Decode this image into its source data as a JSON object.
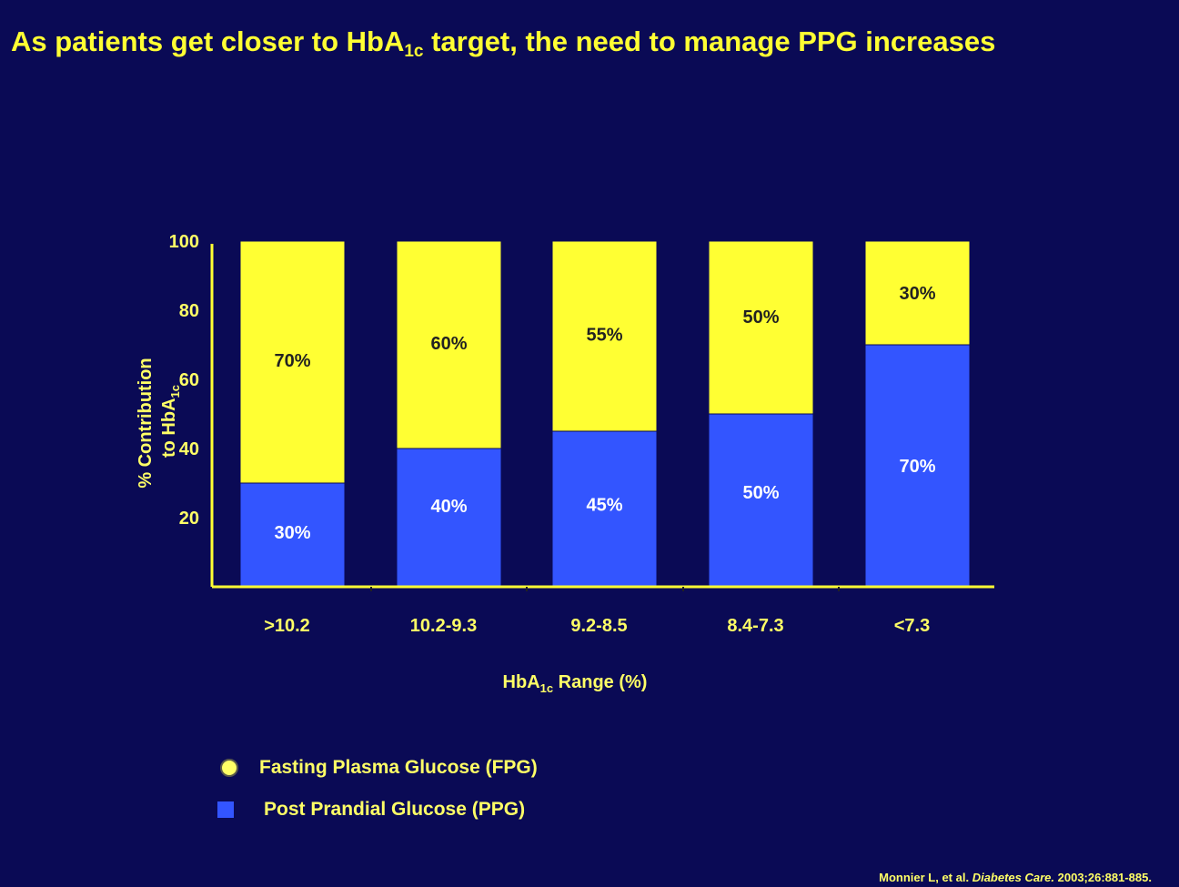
{
  "title": {
    "before_sub": "As patients get closer to HbA",
    "sub": "1c",
    "after_sub": " target, the need to manage PPG increases"
  },
  "colors": {
    "background": "#0a0a55",
    "fpg": "#ffff33",
    "ppg": "#3355ff",
    "axis": "#ffff33",
    "text": "#ffff66"
  },
  "chart_data": {
    "type": "bar",
    "stacked": true,
    "title": "As patients get closer to HbA1c target, the need to manage PPG increases",
    "categories": [
      ">10.2",
      "10.2-9.3",
      "9.2-8.5",
      "8.4-7.3",
      "<7.3"
    ],
    "series": [
      {
        "name": "Post Prandial Glucose (PPG)",
        "values": [
          30,
          40,
          45,
          50,
          70
        ]
      },
      {
        "name": "Fasting Plasma Glucose (FPG)",
        "values": [
          70,
          60,
          55,
          50,
          30
        ]
      }
    ],
    "ppg_labels": [
      "30%",
      "40%",
      "45%",
      "50%",
      "70%"
    ],
    "fpg_labels": [
      "70%",
      "60%",
      "55%",
      "50%",
      "30%"
    ],
    "yticks": [
      "20",
      "40",
      "60",
      "80",
      "100"
    ],
    "ytick_values": [
      20,
      40,
      60,
      80,
      100
    ],
    "ylim": [
      0,
      100
    ],
    "ylabel_line1": "% Contribution",
    "ylabel_line2_main": "to HbA",
    "ylabel_line2_sub": "1c",
    "xlabel_main": "HbA",
    "xlabel_sub": "1c",
    "xlabel_rest": " Range (%)"
  },
  "legend": {
    "fpg_label": "Fasting Plasma Glucose (FPG)",
    "ppg_label": "Post Prandial Glucose (PPG)"
  },
  "citation": {
    "authors": "Monnier L, et al. ",
    "journal": "Diabetes Care.",
    "details": " 2003;26:881-885."
  }
}
